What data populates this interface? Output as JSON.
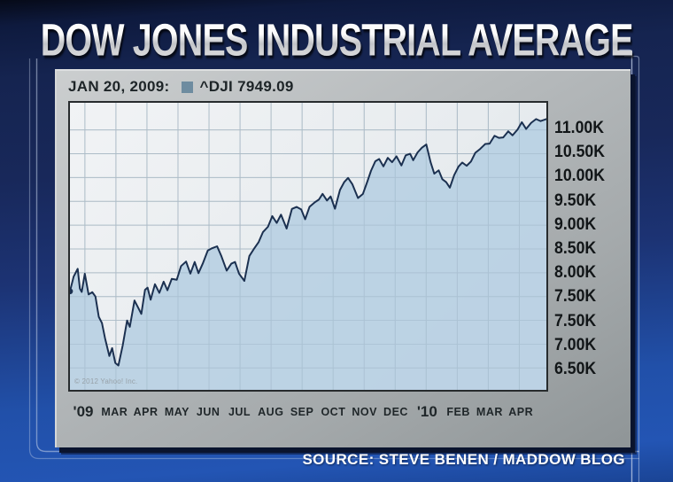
{
  "title": "DOW JONES INDUSTRIAL AVERAGE",
  "chart_header": {
    "date_label": "JAN 20, 2009:",
    "series_label": "^DJI 7949.09"
  },
  "source": {
    "text": "SOURCE: STEVE BENEN / MADDOW BLOG"
  },
  "copyright": "© 2012 Yahoo! Inc.",
  "colors": {
    "accent_blue": "#2153ae",
    "panel_gray": "#b6babc",
    "plot_bg": "#e9edf0",
    "area_fill": "#b8d0e3",
    "line": "#1b3050",
    "grid": "#8aa0b0",
    "legend_swatch": "#6e8ca0",
    "title_text": "#ededed",
    "dark_text": "#1d2427",
    "source_text": "#ffffff"
  },
  "chart_data": {
    "type": "area",
    "title": "DOW JONES INDUSTRIAL AVERAGE",
    "annotation": "JAN 20, 2009: ^DJI 7949.09",
    "legend": [
      {
        "label": "^DJI",
        "color": "#6e8ca0"
      }
    ],
    "legend_position": "top",
    "grid": true,
    "x_tick_labels": [
      "'09",
      "MAR",
      "APR",
      "MAY",
      "JUN",
      "JUL",
      "AUG",
      "SEP",
      "OCT",
      "NOV",
      "DEC",
      "'10",
      "FEB",
      "MAR",
      "APR"
    ],
    "y_tick_labels": [
      "11.00K",
      "10.50K",
      "10.00K",
      "9.50K",
      "9.00K",
      "8.50K",
      "8.00K",
      "7.50K",
      "7.50K",
      "7.00K",
      "6.50K"
    ],
    "x_range_months": [
      0,
      15.35
    ],
    "y_range": [
      6500,
      11000
    ],
    "series": [
      {
        "name": "^DJI",
        "start_value": 7949.09,
        "points": [
          [
            0.0,
            7949
          ],
          [
            0.12,
            8228
          ],
          [
            0.25,
            8375
          ],
          [
            0.32,
            8001
          ],
          [
            0.38,
            7937
          ],
          [
            0.48,
            8281
          ],
          [
            0.6,
            7889
          ],
          [
            0.72,
            7932
          ],
          [
            0.82,
            7850
          ],
          [
            0.93,
            7466
          ],
          [
            1.03,
            7351
          ],
          [
            1.13,
            7062
          ],
          [
            1.27,
            6726
          ],
          [
            1.36,
            6876
          ],
          [
            1.46,
            6594
          ],
          [
            1.56,
            6547
          ],
          [
            1.7,
            6926
          ],
          [
            1.84,
            7396
          ],
          [
            1.93,
            7278
          ],
          [
            2.08,
            7776
          ],
          [
            2.18,
            7660
          ],
          [
            2.3,
            7522
          ],
          [
            2.42,
            7978
          ],
          [
            2.5,
            8018
          ],
          [
            2.6,
            7790
          ],
          [
            2.74,
            8083
          ],
          [
            2.88,
            7920
          ],
          [
            3.02,
            8131
          ],
          [
            3.14,
            7969
          ],
          [
            3.28,
            8185
          ],
          [
            3.44,
            8168
          ],
          [
            3.58,
            8426
          ],
          [
            3.74,
            8512
          ],
          [
            3.88,
            8284
          ],
          [
            4.02,
            8504
          ],
          [
            4.14,
            8292
          ],
          [
            4.28,
            8473
          ],
          [
            4.44,
            8721
          ],
          [
            4.58,
            8763
          ],
          [
            4.74,
            8799
          ],
          [
            4.88,
            8612
          ],
          [
            5.05,
            8339
          ],
          [
            5.2,
            8472
          ],
          [
            5.32,
            8504
          ],
          [
            5.45,
            8281
          ],
          [
            5.62,
            8146
          ],
          [
            5.78,
            8616
          ],
          [
            5.92,
            8744
          ],
          [
            6.08,
            8881
          ],
          [
            6.22,
            9069
          ],
          [
            6.38,
            9171
          ],
          [
            6.52,
            9370
          ],
          [
            6.66,
            9241
          ],
          [
            6.8,
            9398
          ],
          [
            6.98,
            9135
          ],
          [
            7.15,
            9506
          ],
          [
            7.3,
            9544
          ],
          [
            7.45,
            9496
          ],
          [
            7.58,
            9311
          ],
          [
            7.72,
            9547
          ],
          [
            7.88,
            9627
          ],
          [
            8.02,
            9683
          ],
          [
            8.14,
            9791
          ],
          [
            8.28,
            9665
          ],
          [
            8.4,
            9742
          ],
          [
            8.54,
            9509
          ],
          [
            8.7,
            9865
          ],
          [
            8.84,
            10015
          ],
          [
            8.96,
            10092
          ],
          [
            9.1,
            9972
          ],
          [
            9.28,
            9713
          ],
          [
            9.44,
            9790
          ],
          [
            9.58,
            10023
          ],
          [
            9.7,
            10227
          ],
          [
            9.84,
            10407
          ],
          [
            9.96,
            10451
          ],
          [
            10.1,
            10310
          ],
          [
            10.24,
            10472
          ],
          [
            10.38,
            10389
          ],
          [
            10.52,
            10501
          ],
          [
            10.68,
            10328
          ],
          [
            10.82,
            10521
          ],
          [
            10.96,
            10548
          ],
          [
            11.06,
            10428
          ],
          [
            11.2,
            10574
          ],
          [
            11.34,
            10664
          ],
          [
            11.48,
            10725
          ],
          [
            11.62,
            10389
          ],
          [
            11.74,
            10173
          ],
          [
            11.88,
            10236
          ],
          [
            12.0,
            10067
          ],
          [
            12.12,
            10012
          ],
          [
            12.24,
            9908
          ],
          [
            12.38,
            10144
          ],
          [
            12.52,
            10309
          ],
          [
            12.64,
            10383
          ],
          [
            12.78,
            10321
          ],
          [
            12.92,
            10403
          ],
          [
            13.06,
            10566
          ],
          [
            13.22,
            10642
          ],
          [
            13.38,
            10734
          ],
          [
            13.52,
            10741
          ],
          [
            13.68,
            10889
          ],
          [
            13.82,
            10850
          ],
          [
            13.96,
            10857
          ],
          [
            14.12,
            10974
          ],
          [
            14.26,
            10897
          ],
          [
            14.42,
            11006
          ],
          [
            14.56,
            11145
          ],
          [
            14.7,
            11019
          ],
          [
            14.86,
            11134
          ],
          [
            15.02,
            11205
          ],
          [
            15.16,
            11167
          ],
          [
            15.35,
            11205
          ]
        ]
      }
    ]
  }
}
